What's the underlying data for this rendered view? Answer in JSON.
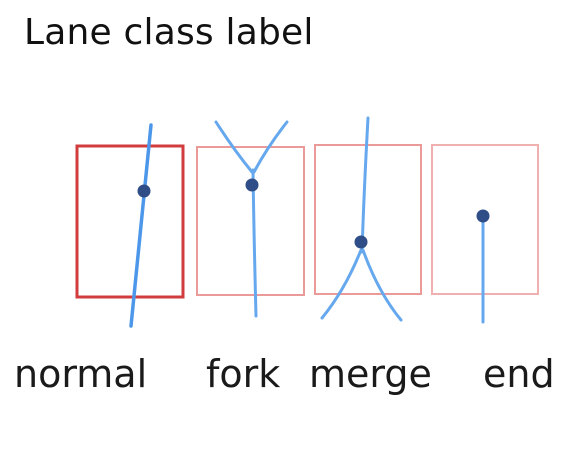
{
  "title": "Lane class label",
  "classes": [
    {
      "id": "normal",
      "label": "normal"
    },
    {
      "id": "fork",
      "label": "fork"
    },
    {
      "id": "merge",
      "label": "merge"
    },
    {
      "id": "end",
      "label": "end"
    }
  ],
  "colors": {
    "box_selected": "#d23c3c",
    "box": "#eb9a9a",
    "lane": "#66a8ee",
    "point": "#2f4d87"
  }
}
